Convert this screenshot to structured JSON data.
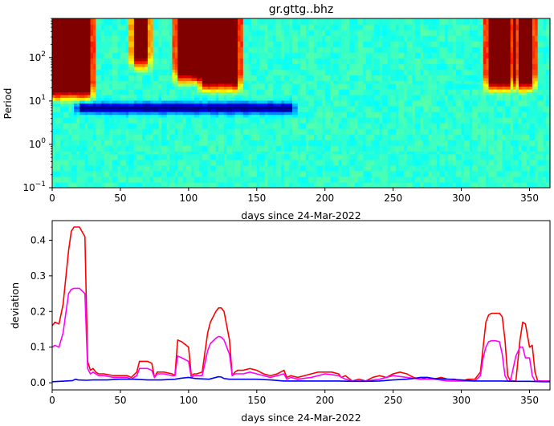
{
  "chart_data": [
    {
      "type": "heatmap",
      "title": "gr.gttg..bhz",
      "xlabel": "days since 24-Mar-2022",
      "ylabel": "Period",
      "xlim": [
        0,
        365
      ],
      "ylim": [
        0.1,
        800
      ],
      "y_scale": "log",
      "colormap": "jet",
      "x_ticks": [
        "0",
        "50",
        "100",
        "150",
        "200",
        "250",
        "300",
        "350"
      ],
      "y_ticks": [
        {
          "base": "10",
          "exp": "2"
        },
        {
          "base": "10",
          "exp": "1"
        },
        {
          "base": "10",
          "exp": "0"
        },
        {
          "base": "10",
          "exp": "−1"
        }
      ],
      "features": [
        {
          "x_range": [
            0,
            27
          ],
          "period_from": 25,
          "intensity": 1.0
        },
        {
          "x_range": [
            60,
            70
          ],
          "period_from": 120,
          "intensity": 0.72
        },
        {
          "x_range": [
            92,
            106
          ],
          "period_from": 60,
          "intensity": 0.95
        },
        {
          "x_range": [
            110,
            135
          ],
          "period_from": 40,
          "intensity": 1.0
        },
        {
          "x_range": [
            320,
            336
          ],
          "period_from": 40,
          "intensity": 1.0
        },
        {
          "x_range": [
            343,
            352
          ],
          "period_from": 40,
          "intensity": 0.95
        },
        {
          "x_range": [
            20,
            175
          ],
          "period_center": 7,
          "intensity": -0.45
        }
      ]
    },
    {
      "type": "line",
      "title": "",
      "xlabel": "days since 24-Mar-2022",
      "ylabel": "deviation",
      "xlim": [
        0,
        365
      ],
      "ylim": [
        -0.02,
        0.455
      ],
      "x_ticks": [
        "0",
        "50",
        "100",
        "150",
        "200",
        "250",
        "300",
        "350"
      ],
      "y_ticks": [
        "0.0",
        "0.1",
        "0.2",
        "0.3",
        "0.4"
      ],
      "grid": false,
      "legend": false,
      "series": [
        {
          "color": "#ff0000",
          "x": [
            0,
            2,
            5,
            8,
            12,
            14,
            16,
            18,
            20,
            24,
            26,
            28,
            30,
            32,
            34,
            38,
            45,
            55,
            58,
            62,
            64,
            70,
            73,
            75,
            77,
            82,
            88,
            90,
            92,
            95,
            100,
            102,
            104,
            106,
            110,
            114,
            116,
            120,
            122,
            124,
            126,
            130,
            132,
            134,
            136,
            140,
            145,
            150,
            155,
            160,
            165,
            170,
            172,
            175,
            180,
            185,
            190,
            195,
            200,
            205,
            210,
            212,
            215,
            220,
            225,
            230,
            235,
            240,
            245,
            250,
            255,
            260,
            265,
            270,
            275,
            280,
            285,
            290,
            295,
            300,
            305,
            310,
            314,
            316,
            318,
            320,
            322,
            325,
            328,
            330,
            332,
            334,
            336,
            340,
            343,
            345,
            347,
            350,
            352,
            354,
            356,
            360,
            365
          ],
          "y": [
            0.16,
            0.17,
            0.165,
            0.22,
            0.37,
            0.425,
            0.437,
            0.437,
            0.437,
            0.41,
            0.06,
            0.035,
            0.04,
            0.03,
            0.025,
            0.025,
            0.02,
            0.02,
            0.015,
            0.03,
            0.06,
            0.06,
            0.055,
            0.015,
            0.03,
            0.03,
            0.025,
            0.02,
            0.12,
            0.115,
            0.1,
            0.02,
            0.025,
            0.025,
            0.03,
            0.14,
            0.17,
            0.2,
            0.21,
            0.21,
            0.2,
            0.12,
            0.02,
            0.03,
            0.035,
            0.035,
            0.04,
            0.035,
            0.025,
            0.02,
            0.025,
            0.035,
            0.015,
            0.02,
            0.015,
            0.02,
            0.025,
            0.03,
            0.03,
            0.03,
            0.025,
            0.015,
            0.02,
            0.005,
            0.01,
            0.005,
            0.015,
            0.02,
            0.015,
            0.025,
            0.03,
            0.025,
            0.015,
            0.01,
            0.015,
            0.01,
            0.015,
            0.01,
            0.01,
            0.005,
            0.01,
            0.01,
            0.03,
            0.1,
            0.17,
            0.19,
            0.195,
            0.195,
            0.195,
            0.185,
            0.12,
            0.02,
            0.005,
            0.005,
            0.12,
            0.17,
            0.165,
            0.1,
            0.105,
            0.03,
            0.005,
            0.005,
            0.005
          ]
        },
        {
          "color": "#ff00ff",
          "x": [
            0,
            2,
            5,
            8,
            12,
            14,
            16,
            18,
            20,
            24,
            26,
            28,
            30,
            34,
            38,
            45,
            55,
            58,
            62,
            64,
            70,
            73,
            75,
            77,
            82,
            88,
            90,
            92,
            95,
            100,
            102,
            104,
            106,
            110,
            114,
            116,
            120,
            122,
            124,
            126,
            130,
            132,
            134,
            140,
            145,
            150,
            155,
            160,
            165,
            170,
            172,
            175,
            180,
            190,
            200,
            210,
            215,
            220,
            230,
            240,
            250,
            260,
            270,
            280,
            290,
            300,
            310,
            314,
            316,
            318,
            320,
            322,
            325,
            328,
            330,
            332,
            334,
            336,
            340,
            343,
            345,
            347,
            350,
            352,
            354,
            356,
            360,
            365
          ],
          "y": [
            0.1,
            0.105,
            0.1,
            0.14,
            0.25,
            0.262,
            0.265,
            0.265,
            0.265,
            0.25,
            0.04,
            0.025,
            0.03,
            0.02,
            0.02,
            0.015,
            0.015,
            0.01,
            0.02,
            0.04,
            0.04,
            0.035,
            0.015,
            0.025,
            0.025,
            0.02,
            0.02,
            0.075,
            0.07,
            0.06,
            0.015,
            0.02,
            0.02,
            0.02,
            0.09,
            0.11,
            0.125,
            0.13,
            0.128,
            0.12,
            0.08,
            0.02,
            0.025,
            0.025,
            0.03,
            0.025,
            0.02,
            0.015,
            0.02,
            0.025,
            0.01,
            0.015,
            0.01,
            0.015,
            0.025,
            0.02,
            0.01,
            0.005,
            0.005,
            0.01,
            0.02,
            0.015,
            0.01,
            0.01,
            0.005,
            0.005,
            0.005,
            0.02,
            0.07,
            0.1,
            0.115,
            0.118,
            0.118,
            0.115,
            0.08,
            0.02,
            0.005,
            0.005,
            0.075,
            0.1,
            0.1,
            0.07,
            0.07,
            0.02,
            0.005,
            0.005,
            0.005,
            0.005
          ]
        },
        {
          "color": "#0000ff",
          "x": [
            0,
            10,
            15,
            17,
            19,
            25,
            30,
            40,
            50,
            60,
            70,
            80,
            90,
            95,
            100,
            105,
            115,
            120,
            122,
            124,
            126,
            130,
            140,
            150,
            160,
            170,
            180,
            190,
            200,
            210,
            220,
            230,
            240,
            250,
            260,
            265,
            270,
            275,
            280,
            290,
            300,
            310,
            320,
            330,
            340,
            350,
            360,
            365
          ],
          "y": [
            0.003,
            0.005,
            0.006,
            0.01,
            0.008,
            0.007,
            0.008,
            0.008,
            0.01,
            0.01,
            0.008,
            0.008,
            0.01,
            0.013,
            0.015,
            0.012,
            0.01,
            0.015,
            0.017,
            0.016,
            0.012,
            0.01,
            0.01,
            0.01,
            0.008,
            0.005,
            0.005,
            0.005,
            0.005,
            0.005,
            0.004,
            0.004,
            0.005,
            0.008,
            0.01,
            0.012,
            0.015,
            0.015,
            0.012,
            0.01,
            0.008,
            0.005,
            0.005,
            0.005,
            0.004,
            0.004,
            0.003,
            0.003
          ]
        }
      ]
    }
  ]
}
